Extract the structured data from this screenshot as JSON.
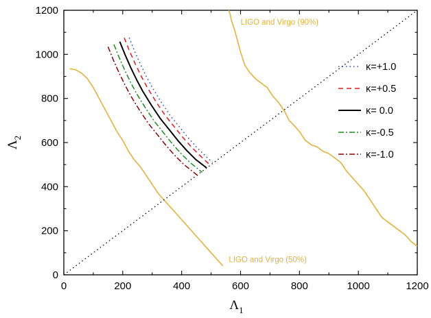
{
  "chart_data": {
    "type": "line",
    "xlabel": "Λ",
    "xlabel_sub": "1",
    "ylabel": "Λ",
    "ylabel_sub": "2",
    "xlim": [
      0,
      1200
    ],
    "ylim": [
      0,
      1200
    ],
    "xticks": [
      0,
      200,
      400,
      600,
      800,
      1000,
      1200
    ],
    "yticks": [
      0,
      200,
      400,
      600,
      800,
      1000,
      1200
    ],
    "grid": false,
    "legend_position": "right",
    "series": [
      {
        "name": "κ=+1.0",
        "color": "#2040c8",
        "dash": "1.5,4",
        "x": [
          222,
          240,
          260,
          280,
          300,
          330,
          360,
          390,
          420,
          450,
          480,
          505
        ],
        "y": [
          1075,
          1015,
          955,
          900,
          850,
          785,
          725,
          675,
          625,
          580,
          540,
          510
        ]
      },
      {
        "name": "κ=+0.5",
        "color": "#e8141c",
        "dash": "7,5",
        "x": [
          205,
          223,
          243,
          263,
          283,
          313,
          343,
          373,
          403,
          433,
          463,
          495
        ],
        "y": [
          1075,
          1015,
          955,
          900,
          850,
          785,
          725,
          675,
          625,
          580,
          540,
          500
        ]
      },
      {
        "name": "κ= 0.0",
        "color": "#000000",
        "dash": "",
        "x": [
          190,
          208,
          228,
          248,
          268,
          298,
          328,
          358,
          388,
          418,
          448,
          485
        ],
        "y": [
          1058,
          998,
          938,
          883,
          833,
          768,
          708,
          658,
          608,
          563,
          523,
          485
        ]
      },
      {
        "name": "κ=-0.5",
        "color": "#1a8c1a",
        "dash": "8,3,2,3",
        "x": [
          170,
          188,
          208,
          228,
          248,
          278,
          308,
          338,
          368,
          398,
          428,
          470
        ],
        "y": [
          1045,
          985,
          925,
          870,
          820,
          755,
          695,
          645,
          595,
          550,
          510,
          465
        ]
      },
      {
        "name": "κ=-1.0",
        "color": "#8b0000",
        "dash": "8,3,2,3",
        "x": [
          150,
          168,
          188,
          208,
          228,
          258,
          288,
          318,
          348,
          378,
          408,
          455
        ],
        "y": [
          1035,
          975,
          915,
          860,
          810,
          745,
          685,
          635,
          585,
          540,
          500,
          450
        ]
      }
    ],
    "contours": [
      {
        "label": "LIGO and Virgo (90%)",
        "color": "#e3b23c",
        "x": [
          560,
          565,
          570,
          580,
          590,
          600,
          615,
          630,
          650,
          670,
          690,
          710,
          730,
          750,
          765,
          780,
          800,
          820,
          840,
          860,
          880,
          900,
          920,
          940,
          960,
          980,
          1000,
          1020,
          1040,
          1060,
          1080,
          1100,
          1120,
          1140,
          1160,
          1180,
          1200
        ],
        "y": [
          1200,
          1180,
          1150,
          1110,
          1060,
          1010,
          950,
          920,
          890,
          870,
          850,
          810,
          780,
          740,
          700,
          680,
          650,
          610,
          590,
          580,
          560,
          550,
          530,
          510,
          470,
          440,
          410,
          380,
          340,
          300,
          260,
          240,
          220,
          200,
          180,
          150,
          130
        ]
      },
      {
        "label": "LIGO and Virgo (50%)",
        "color": "#e3b23c",
        "x": [
          20,
          40,
          60,
          80,
          100,
          120,
          140,
          160,
          180,
          200,
          220,
          240,
          260,
          280,
          300,
          320,
          340,
          360,
          380,
          400,
          420,
          440,
          460,
          480,
          500,
          520,
          540
        ],
        "y": [
          935,
          930,
          915,
          890,
          850,
          800,
          750,
          700,
          650,
          610,
          560,
          520,
          490,
          450,
          410,
          370,
          340,
          310,
          280,
          250,
          220,
          190,
          160,
          130,
          100,
          70,
          40
        ]
      },
      {
        "label": "",
        "color": "#000000",
        "dash": "1.5,4",
        "x": [
          0,
          1200
        ],
        "y": [
          0,
          1200
        ]
      }
    ]
  }
}
